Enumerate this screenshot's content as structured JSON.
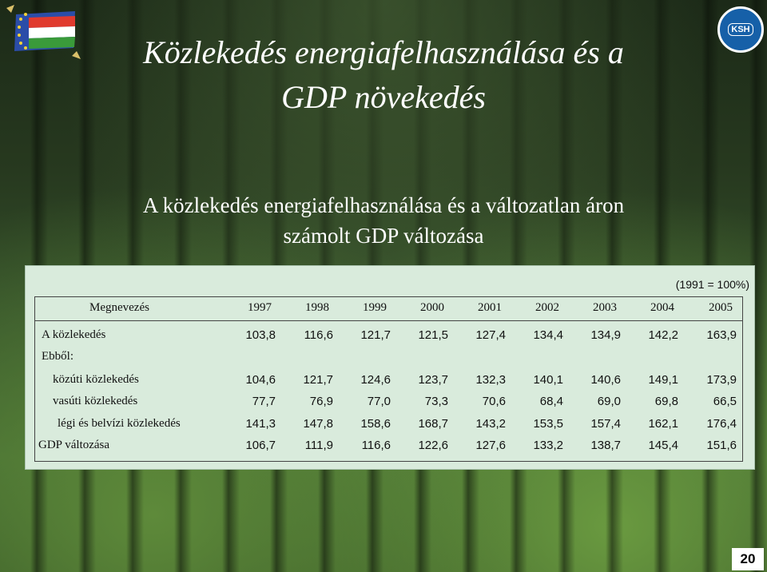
{
  "title_line1": "Közlekedés energiafelhasználása és a",
  "title_line2": "GDP növekedés",
  "subtitle_line1": "A közlekedés energiafelhasználása és a változatlan áron",
  "subtitle_line2": "számolt GDP változása",
  "logo_text": "KSH",
  "table": {
    "unit_note": "(1991 = 100%)",
    "header_label": "Megnevezés",
    "years": [
      "1997",
      "1998",
      "1999",
      "2000",
      "2001",
      "2002",
      "2003",
      "2004",
      "2005"
    ],
    "rows": [
      {
        "label": "A közlekedés",
        "values": [
          "103,8",
          "116,6",
          "121,7",
          "121,5",
          "127,4",
          "134,4",
          "134,9",
          "142,2",
          "163,9"
        ]
      },
      {
        "label": "Ebből:",
        "values": []
      },
      {
        "label": "közúti közlekedés",
        "values": [
          "104,6",
          "121,7",
          "124,6",
          "123,7",
          "132,3",
          "140,1",
          "140,6",
          "149,1",
          "173,9"
        ]
      },
      {
        "label": "vasúti közlekedés",
        "values": [
          "77,7",
          "76,9",
          "77,0",
          "73,3",
          "70,6",
          "68,4",
          "69,0",
          "69,8",
          "66,5"
        ]
      },
      {
        "label": "légi és belvízi közlekedés",
        "values": [
          "141,3",
          "147,8",
          "158,6",
          "168,7",
          "143,2",
          "153,5",
          "157,4",
          "162,1",
          "176,4"
        ]
      },
      {
        "label": "GDP változása",
        "values": [
          "106,7",
          "111,9",
          "116,6",
          "122,6",
          "127,6",
          "133,2",
          "138,7",
          "145,4",
          "151,6"
        ]
      }
    ]
  },
  "page_number": "20"
}
